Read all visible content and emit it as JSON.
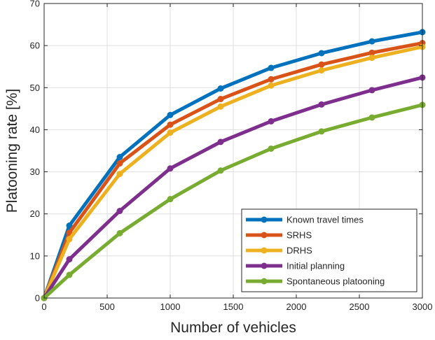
{
  "chart_data": {
    "type": "line",
    "xlabel": "Number of vehicles",
    "ylabel": "Platooning rate [%]",
    "xlim": [
      0,
      3000
    ],
    "ylim": [
      0,
      70
    ],
    "xticks": [
      0,
      500,
      1000,
      1500,
      2000,
      2500,
      3000
    ],
    "yticks": [
      0,
      10,
      20,
      30,
      40,
      50,
      60,
      70
    ],
    "grid": true,
    "legend_position": "bottom-right",
    "x": [
      0,
      200,
      600,
      1000,
      1400,
      1800,
      2200,
      2600,
      3000
    ],
    "series": [
      {
        "name": "Known travel times",
        "color": "#0072bd",
        "values": [
          0,
          17.2,
          33.5,
          43.5,
          49.8,
          54.7,
          58.2,
          61.0,
          63.2
        ]
      },
      {
        "name": "SRHS",
        "color": "#d95319",
        "values": [
          0,
          15.5,
          32.0,
          41.2,
          47.3,
          52.0,
          55.5,
          58.3,
          60.6
        ]
      },
      {
        "name": "DRHS",
        "color": "#edb120",
        "values": [
          0,
          14.0,
          29.5,
          39.3,
          45.5,
          50.5,
          54.1,
          57.1,
          59.7
        ]
      },
      {
        "name": "Initial planning",
        "color": "#7e2f8e",
        "values": [
          0,
          9.2,
          20.7,
          30.8,
          37.1,
          42.0,
          46.0,
          49.4,
          52.4
        ]
      },
      {
        "name": "Spontaneous platooning",
        "color": "#77ac30",
        "values": [
          0,
          5.5,
          15.4,
          23.5,
          30.3,
          35.5,
          39.6,
          42.9,
          45.9
        ]
      }
    ]
  }
}
